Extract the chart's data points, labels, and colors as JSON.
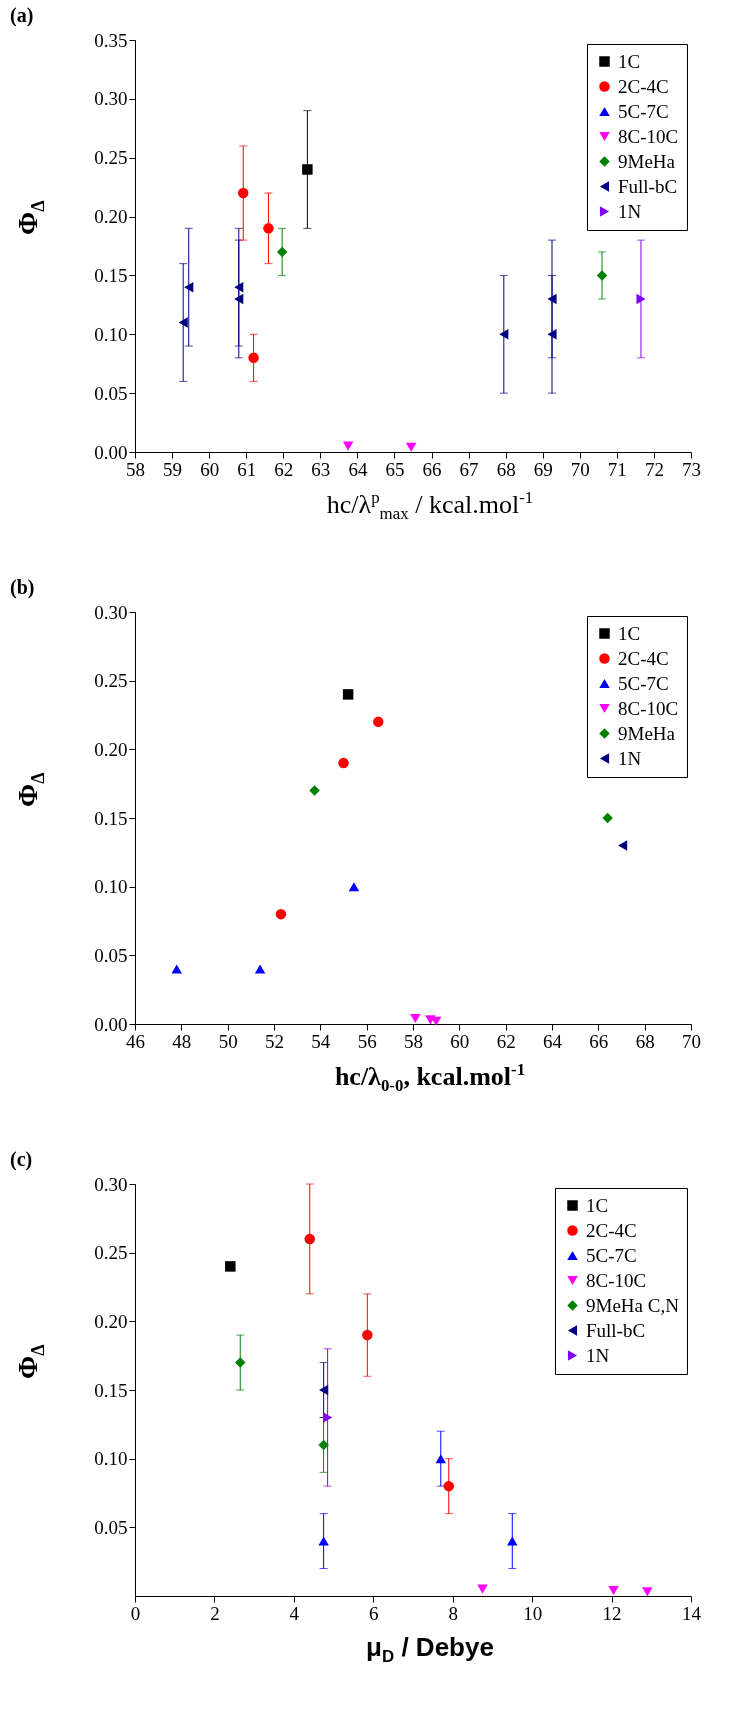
{
  "chart_data": [
    {
      "type": "scatter",
      "title": "(a)",
      "xlabel": "hc/λ$^{p}$$_{max}$ / kcal.mol$^{-1}$",
      "ylabel": "Φ$_{Δ}$",
      "legend": "top right",
      "xlim": [
        58,
        73
      ],
      "xticks": [
        58,
        59,
        60,
        61,
        62,
        63,
        64,
        65,
        66,
        67,
        68,
        69,
        70,
        71,
        72,
        73
      ],
      "ylim": [
        0,
        0.35
      ],
      "yticks": [
        {
          "value": 0,
          "label": "0.00"
        },
        {
          "value": 0.05,
          "label": "0.05"
        },
        {
          "value": 0.1,
          "label": "0.10"
        },
        {
          "value": 0.15,
          "label": "0.15"
        },
        {
          "value": 0.2,
          "label": "0.20"
        },
        {
          "value": 0.25,
          "label": "0.25"
        },
        {
          "value": 0.3,
          "label": "0.30"
        },
        {
          "value": 0.35,
          "label": "0.35"
        }
      ],
      "series": [
        {
          "name": "1C",
          "color": "#000000",
          "marker": "square",
          "x": [
            62.65
          ],
          "values": [
            0.24
          ],
          "errors": [
            [
              0.19,
              0.29
            ]
          ]
        },
        {
          "name": "2C-4C",
          "color": "#ff0000",
          "marker": "circle",
          "x": [
            60.92,
            61.6,
            61.2
          ],
          "values": [
            0.22,
            0.19,
            0.08
          ],
          "errors": [
            [
              0.18,
              0.26
            ],
            [
              0.16,
              0.22
            ],
            [
              0.06,
              0.1
            ]
          ]
        },
        {
          "name": "5C-7C",
          "color": "#0000ff",
          "marker": "triangle"
        },
        {
          "name": "8C-10C",
          "color": "#ff00ff",
          "marker": "triangle-down",
          "x": [
            63.75,
            65.45
          ],
          "values": [
            0.005,
            0.004
          ]
        },
        {
          "name": "9MeHa",
          "color": "#008000",
          "marker": "diamond",
          "x": [
            61.97,
            70.6
          ],
          "values": [
            0.17,
            0.15
          ],
          "errors": [
            [
              0.15,
              0.19
            ],
            [
              0.13,
              0.17
            ]
          ]
        },
        {
          "name": "Full-bC",
          "color": "#000080",
          "marker": "triangle-left",
          "x": [
            59.3,
            59.45,
            60.8,
            60.8,
            67.95,
            69.25,
            69.25
          ],
          "values": [
            0.11,
            0.14,
            0.14,
            0.13,
            0.1,
            0.13,
            0.1
          ],
          "errors": [
            [
              0.06,
              0.16
            ],
            [
              0.09,
              0.19
            ],
            [
              0.09,
              0.19
            ],
            [
              0.08,
              0.18
            ],
            [
              0.05,
              0.15
            ],
            [
              0.08,
              0.18
            ],
            [
              0.05,
              0.15
            ]
          ]
        },
        {
          "name": "1N",
          "color": "#8000ff",
          "marker": "triangle-right",
          "x": [
            71.65
          ],
          "values": [
            0.13
          ],
          "errors": [
            [
              0.08,
              0.18
            ]
          ]
        }
      ]
    },
    {
      "type": "scatter",
      "title": "(b)",
      "xlabel": "hc/λ$_{0-0}$, kcal.mol$^{-1}$",
      "ylabel": "Φ$_{Δ}$",
      "legend": "top right",
      "xlim": [
        46,
        70
      ],
      "xticks": [
        46,
        48,
        50,
        52,
        54,
        56,
        58,
        60,
        62,
        64,
        66,
        68,
        70
      ],
      "ylim": [
        0,
        0.3
      ],
      "yticks": [
        {
          "value": 0,
          "label": "0.00"
        },
        {
          "value": 0.05,
          "label": "0.05"
        },
        {
          "value": 0.1,
          "label": "0.10"
        },
        {
          "value": 0.15,
          "label": "0.15"
        },
        {
          "value": 0.2,
          "label": "0.20"
        },
        {
          "value": 0.25,
          "label": "0.25"
        },
        {
          "value": 0.3,
          "label": "0.30"
        }
      ],
      "series": [
        {
          "name": "1C",
          "color": "#000000",
          "marker": "square",
          "x": [
            55.2
          ],
          "values": [
            0.24
          ]
        },
        {
          "name": "2C-4C",
          "color": "#ff0000",
          "marker": "circle",
          "x": [
            56.5,
            55.0,
            52.3
          ],
          "values": [
            0.22,
            0.19,
            0.08
          ]
        },
        {
          "name": "5C-7C",
          "color": "#0000ff",
          "marker": "triangle",
          "x": [
            47.8,
            51.4,
            55.45
          ],
          "values": [
            0.04,
            0.04,
            0.1
          ]
        },
        {
          "name": "8C-10C",
          "color": "#ff00ff",
          "marker": "triangle-down",
          "x": [
            58.1,
            58.75,
            59.0
          ],
          "values": [
            0.004,
            0.003,
            0.002
          ]
        },
        {
          "name": "9MeHa",
          "color": "#008000",
          "marker": "diamond",
          "x": [
            53.75,
            66.4
          ],
          "values": [
            0.17,
            0.15
          ]
        },
        {
          "name": "1N",
          "color": "#000080",
          "marker": "triangle-left",
          "x": [
            67.05
          ],
          "values": [
            0.13
          ]
        }
      ]
    },
    {
      "type": "scatter",
      "title": "(c)",
      "xlabel": "μ$_{D}$ / Debye",
      "ylabel": "Φ$_{Δ}$",
      "legend": "top right",
      "xlim": [
        0,
        14
      ],
      "xticks": [
        0,
        2,
        4,
        6,
        8,
        10,
        12,
        14
      ],
      "ylim": [
        0,
        0.3
      ],
      "yticks": [
        {
          "value": 0.05,
          "label": "0.05"
        },
        {
          "value": 0.1,
          "label": "0.10"
        },
        {
          "value": 0.15,
          "label": "0.15"
        },
        {
          "value": 0.2,
          "label": "0.20"
        },
        {
          "value": 0.25,
          "label": "0.25"
        },
        {
          "value": 0.3,
          "label": "0.30"
        }
      ],
      "series": [
        {
          "name": "1C",
          "color": "#000000",
          "marker": "square",
          "x": [
            2.4
          ],
          "values": [
            0.24
          ]
        },
        {
          "name": "2C-4C",
          "color": "#ff0000",
          "marker": "circle",
          "x": [
            4.4,
            5.85,
            7.9
          ],
          "values": [
            0.26,
            0.19,
            0.08
          ],
          "errors": [
            [
              0.22,
              0.3
            ],
            [
              0.16,
              0.22
            ],
            [
              0.06,
              0.1
            ]
          ]
        },
        {
          "name": "5C-7C",
          "color": "#0000ff",
          "marker": "triangle",
          "x": [
            4.75,
            7.7,
            9.5
          ],
          "values": [
            0.04,
            0.1,
            0.04
          ],
          "errors": [
            [
              0.02,
              0.06
            ],
            [
              0.08,
              0.12
            ],
            [
              0.02,
              0.06
            ]
          ]
        },
        {
          "name": "8C-10C",
          "color": "#ff00ff",
          "marker": "triangle-down",
          "x": [
            8.75,
            12.05,
            12.9
          ],
          "values": [
            0.005,
            0.004,
            0.003
          ]
        },
        {
          "name": "9MeHa C,N",
          "color": "#008000",
          "marker": "diamond",
          "x": [
            2.65,
            4.75
          ],
          "values": [
            0.17,
            0.11
          ],
          "errors": [
            [
              0.15,
              0.19
            ],
            [
              0.09,
              0.13
            ]
          ]
        },
        {
          "name": "Full-bC",
          "color": "#000080",
          "marker": "triangle-left",
          "x": [
            4.75
          ],
          "values": [
            0.15
          ],
          "errors": [
            [
              0.13,
              0.17
            ]
          ]
        },
        {
          "name": "1N",
          "color": "#8000ff",
          "marker": "triangle-right",
          "x": [
            4.85
          ],
          "values": [
            0.13
          ],
          "errors": [
            [
              0.08,
              0.18
            ]
          ]
        }
      ]
    }
  ]
}
